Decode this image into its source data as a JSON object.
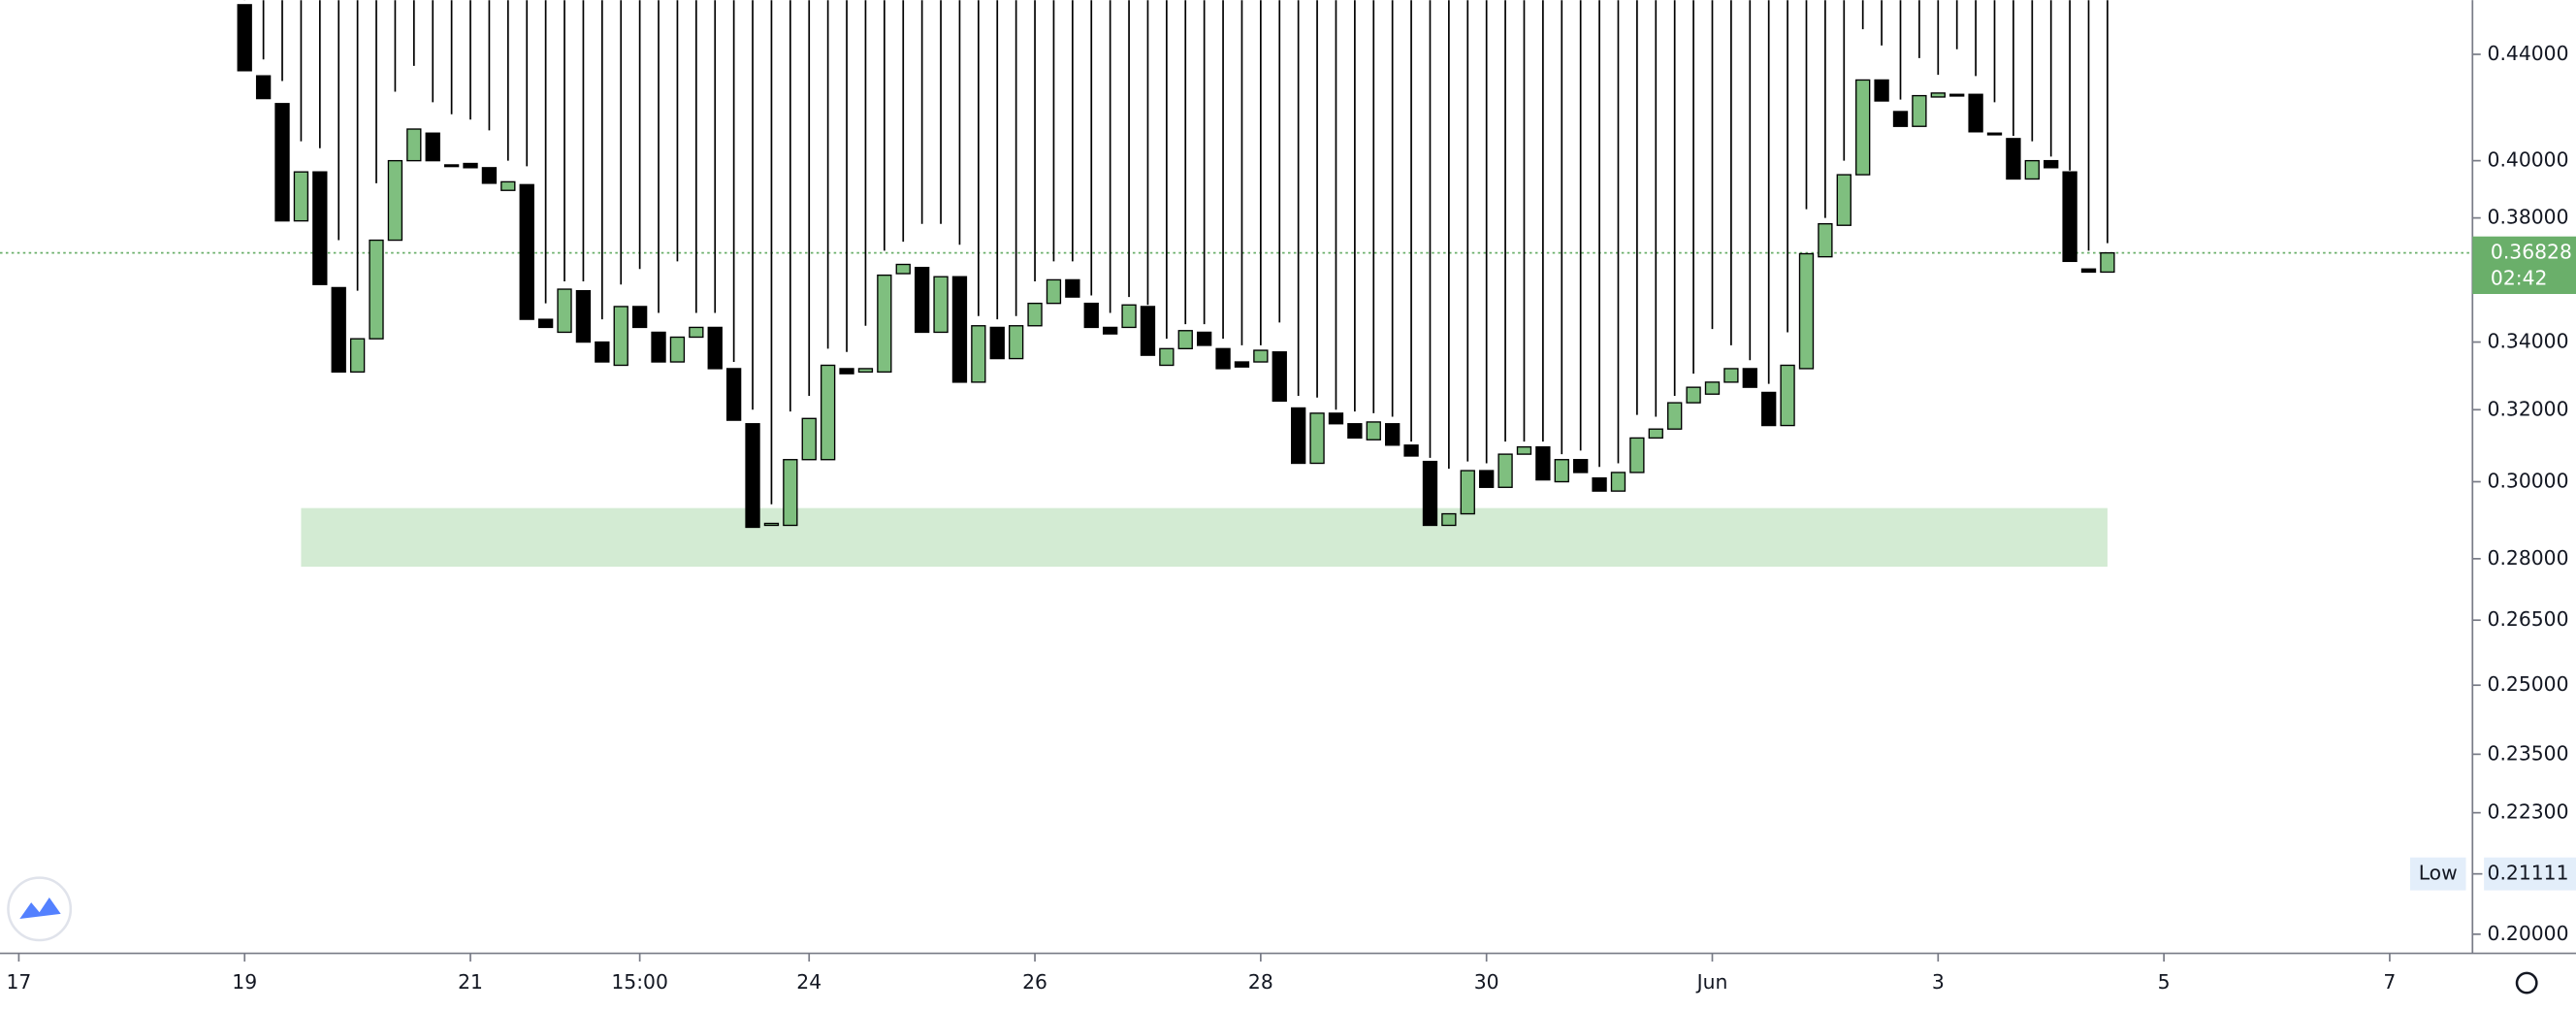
{
  "chart_data": {
    "type": "candlestick",
    "log_scale": true,
    "up_color": "#7fbf7f",
    "down_color": "#000000",
    "open": [
      0.46,
      0.4316,
      0.421,
      0.379,
      0.396,
      0.357,
      0.331,
      0.341,
      0.3725,
      0.4,
      0.41,
      0.3985,
      0.399,
      0.3975,
      0.3895,
      0.3915,
      0.347,
      0.343,
      0.356,
      0.34,
      0.333,
      0.351,
      0.343,
      0.334,
      0.3415,
      0.3445,
      0.332,
      0.316,
      0.2885,
      0.2885,
      0.306,
      0.306,
      0.332,
      0.331,
      0.331,
      0.3615,
      0.3635,
      0.343,
      0.3605,
      0.328,
      0.3445,
      0.335,
      0.345,
      0.352,
      0.3595,
      0.352,
      0.3445,
      0.3445,
      0.351,
      0.333,
      0.338,
      0.343,
      0.338,
      0.334,
      0.334,
      0.337,
      0.3205,
      0.305,
      0.319,
      0.316,
      0.3115,
      0.316,
      0.31,
      0.3055,
      0.2885,
      0.2915,
      0.303,
      0.2985,
      0.3075,
      0.3095,
      0.3,
      0.306,
      0.301,
      0.2975,
      0.3025,
      0.312,
      0.3145,
      0.322,
      0.3245,
      0.328,
      0.332,
      0.325,
      0.3155,
      0.332,
      0.367,
      0.3775,
      0.395,
      0.43,
      0.418,
      0.4125,
      0.4235,
      0.4245,
      0.4245,
      0.41,
      0.408,
      0.3935,
      0.4,
      0.396,
      0.363,
      0.362
    ],
    "high": [
      0.47,
      0.438,
      0.4296,
      0.407,
      0.4045,
      0.3725,
      0.356,
      0.392,
      0.4255,
      0.4355,
      0.4215,
      0.417,
      0.415,
      0.411,
      0.4,
      0.398,
      0.352,
      0.359,
      0.359,
      0.347,
      0.358,
      0.363,
      0.349,
      0.3655,
      0.349,
      0.349,
      0.334,
      0.32,
      0.294,
      0.3195,
      0.324,
      0.338,
      0.337,
      0.345,
      0.369,
      0.372,
      0.378,
      0.378,
      0.371,
      0.348,
      0.347,
      0.348,
      0.359,
      0.3655,
      0.3655,
      0.3545,
      0.349,
      0.354,
      0.3515,
      0.341,
      0.3455,
      0.3455,
      0.341,
      0.339,
      0.339,
      0.346,
      0.324,
      0.3235,
      0.32,
      0.3195,
      0.319,
      0.318,
      0.311,
      0.3065,
      0.3035,
      0.3055,
      0.305,
      0.311,
      0.311,
      0.311,
      0.3075,
      0.3085,
      0.304,
      0.305,
      0.3185,
      0.318,
      0.324,
      0.3305,
      0.344,
      0.339,
      0.3345,
      0.3275,
      0.343,
      0.383,
      0.38,
      0.4,
      0.45,
      0.4435,
      0.4225,
      0.4385,
      0.432,
      0.442,
      0.4315,
      0.4215,
      0.409,
      0.407,
      0.4015,
      0.3965,
      0.369,
      0.3715
    ],
    "low": {
      "label": "Low",
      "value": 0.21111
    },
    "close": [
      0.4336,
      0.4229,
      0.379,
      0.396,
      0.358,
      0.331,
      0.341,
      0.3725,
      0.4,
      0.4115,
      0.4,
      0.3982,
      0.3975,
      0.392,
      0.3925,
      0.347,
      0.3445,
      0.3565,
      0.34,
      0.334,
      0.351,
      0.3445,
      0.334,
      0.3415,
      0.3445,
      0.332,
      0.317,
      0.288,
      0.289,
      0.306,
      0.3175,
      0.333,
      0.3305,
      0.332,
      0.361,
      0.3645,
      0.343,
      0.3605,
      0.328,
      0.345,
      0.335,
      0.345,
      0.352,
      0.3595,
      0.354,
      0.3445,
      0.3425,
      0.3515,
      0.336,
      0.338,
      0.3435,
      0.339,
      0.332,
      0.3325,
      0.3375,
      0.3225,
      0.305,
      0.319,
      0.316,
      0.312,
      0.3165,
      0.31,
      0.307,
      0.2885,
      0.2915,
      0.303,
      0.2985,
      0.3075,
      0.3095,
      0.3005,
      0.306,
      0.3025,
      0.2975,
      0.3025,
      0.312,
      0.3145,
      0.322,
      0.3265,
      0.328,
      0.332,
      0.3265,
      0.3155,
      0.333,
      0.368,
      0.378,
      0.395,
      0.43,
      0.422,
      0.4125,
      0.424,
      0.425,
      0.424,
      0.4105,
      0.4095,
      0.3935,
      0.4,
      0.3975,
      0.3655,
      0.362,
      0.36828
    ],
    "xlim": [
      -13,
      118.4
    ],
    "ylim": [
      0.1966,
      0.4619
    ],
    "xticks": [
      {
        "value": -12,
        "label": "17"
      },
      {
        "value": 0,
        "label": "19"
      },
      {
        "value": 12,
        "label": "21"
      },
      {
        "value": 21,
        "label": "15:00"
      },
      {
        "value": 30,
        "label": "24"
      },
      {
        "value": 42,
        "label": "26"
      },
      {
        "value": 54,
        "label": "28"
      },
      {
        "value": 66,
        "label": "30"
      },
      {
        "value": 78,
        "label": "Jun"
      },
      {
        "value": 90,
        "label": "3"
      },
      {
        "value": 102,
        "label": "5"
      },
      {
        "value": 114,
        "label": "7"
      }
    ],
    "yticks": [
      {
        "value": 0.44,
        "label": "0.44000"
      },
      {
        "value": 0.4,
        "label": "0.40000"
      },
      {
        "value": 0.38,
        "label": "0.38000"
      },
      {
        "value": 0.34,
        "label": "0.34000"
      },
      {
        "value": 0.32,
        "label": "0.32000"
      },
      {
        "value": 0.3,
        "label": "0.30000"
      },
      {
        "value": 0.28,
        "label": "0.28000"
      },
      {
        "value": 0.265,
        "label": "0.26500"
      },
      {
        "value": 0.25,
        "label": "0.25000"
      },
      {
        "value": 0.235,
        "label": "0.23500"
      },
      {
        "value": 0.223,
        "label": "0.22300"
      },
      {
        "value": 0.2,
        "label": "0.20000"
      }
    ],
    "last_price": {
      "value": 0.36828,
      "countdown": "02:42",
      "color": "#6aaf6a"
    },
    "zone": {
      "from": 0.278,
      "to": 0.293,
      "start": 3,
      "end": 99,
      "color": "#d3ebd3"
    }
  }
}
